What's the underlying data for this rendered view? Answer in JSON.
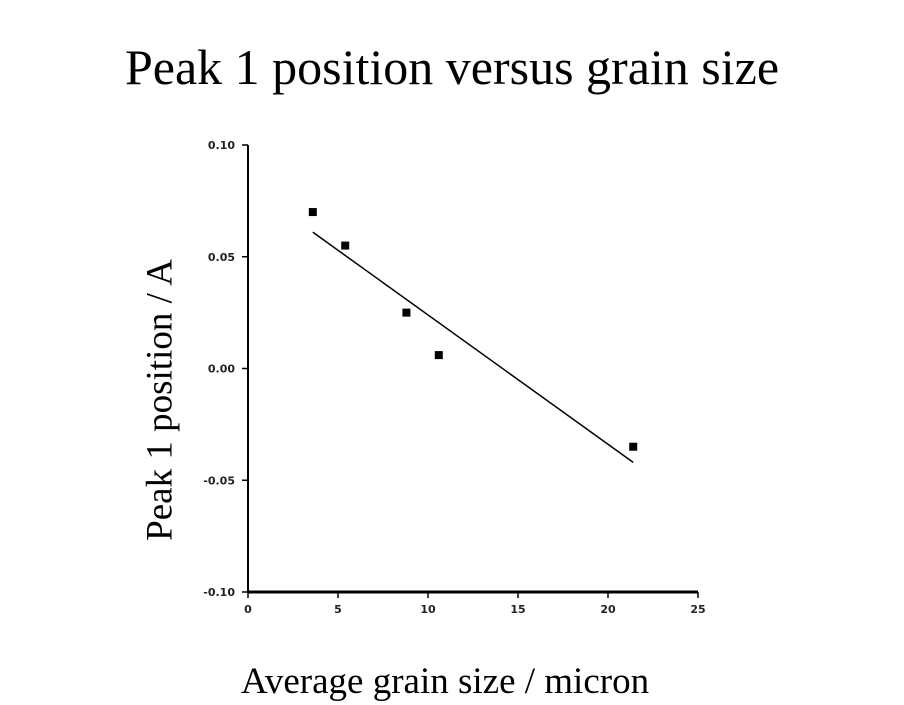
{
  "chart_data": {
    "type": "scatter",
    "title": "Peak 1 position versus grain size",
    "xlabel": "Average grain size / micron",
    "ylabel": "Peak 1 position / A",
    "xlim": [
      0,
      25
    ],
    "ylim": [
      -0.1,
      0.1
    ],
    "xticks": [
      "0",
      "5",
      "10",
      "15",
      "20",
      "25"
    ],
    "yticks": [
      "0.10",
      "0.05",
      "0.00",
      "-0.05",
      "-0.10"
    ],
    "grid": false,
    "points": [
      {
        "x": 3.6,
        "y": 0.07
      },
      {
        "x": 5.4,
        "y": 0.055
      },
      {
        "x": 8.8,
        "y": 0.025
      },
      {
        "x": 10.6,
        "y": 0.006
      },
      {
        "x": 21.4,
        "y": -0.035
      }
    ],
    "fit_line": {
      "x": [
        3.6,
        21.4
      ],
      "y": [
        0.061,
        -0.042
      ]
    },
    "colors": {
      "points": "#000000",
      "line": "#000000",
      "axes": "#000000"
    }
  }
}
